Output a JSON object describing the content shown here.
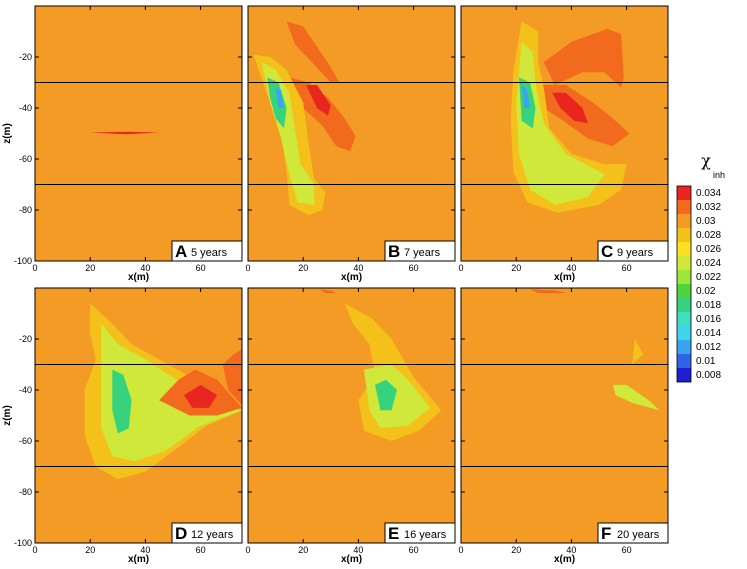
{
  "chart_data": {
    "type": "heatmap",
    "variable": "χ",
    "variable_sub": "inh",
    "xlabel": "x(m)",
    "ylabel": "z(m)",
    "xlim": [
      0,
      75
    ],
    "ylim": [
      -100,
      0
    ],
    "x_ticks": [
      0,
      20,
      40,
      60
    ],
    "y_ticks": [
      -100,
      -80,
      -60,
      -40,
      -20
    ],
    "layer_boundaries_z": [
      -30,
      -70
    ],
    "background_value": 0.029,
    "colorbar": {
      "ticks": [
        0.034,
        0.032,
        0.03,
        0.028,
        0.026,
        0.024,
        0.022,
        0.02,
        0.018,
        0.016,
        0.014,
        0.012,
        0.01,
        0.008
      ],
      "colors": [
        "#e8261f",
        "#f26a1d",
        "#f39b24",
        "#f4c01a",
        "#fbe11f",
        "#cfe839",
        "#9ee53c",
        "#4fd43e",
        "#36d27e",
        "#3fe0c0",
        "#3fd4ea",
        "#3aa4ef",
        "#2e64e6",
        "#1e1fd3"
      ]
    },
    "panels": [
      {
        "letter": "A",
        "label": "5 years",
        "features": [
          {
            "level": 0.034,
            "points": [
              [
                20,
                -49.6
              ],
              [
                33,
                -49.3
              ],
              [
                45,
                -49.6
              ],
              [
                33,
                -50.3
              ]
            ]
          }
        ]
      },
      {
        "letter": "B",
        "label": "7 years",
        "features": [
          {
            "level": 0.031,
            "points": [
              [
                14,
                -6
              ],
              [
                20,
                -8
              ],
              [
                25,
                -16
              ],
              [
                30,
                -24
              ],
              [
                33,
                -30
              ],
              [
                30,
                -30
              ],
              [
                24,
                -23
              ],
              [
                17,
                -15
              ]
            ]
          },
          {
            "level": 0.031,
            "points": [
              [
                15,
                -28
              ],
              [
                22,
                -30
              ],
              [
                29,
                -36
              ],
              [
                35,
                -44
              ],
              [
                39,
                -51
              ],
              [
                37,
                -57
              ],
              [
                32,
                -55
              ],
              [
                27,
                -47
              ],
              [
                20,
                -40
              ]
            ]
          },
          {
            "level": 0.033,
            "points": [
              [
                21,
                -31
              ],
              [
                25,
                -31
              ],
              [
                30,
                -39
              ],
              [
                29,
                -43
              ],
              [
                25,
                -40
              ]
            ]
          },
          {
            "level": 0.027,
            "points": [
              [
                2,
                -19
              ],
              [
                8,
                -20
              ],
              [
                14,
                -25
              ],
              [
                20,
                -38
              ],
              [
                22,
                -54
              ],
              [
                24,
                -68
              ],
              [
                28,
                -73
              ],
              [
                27,
                -80
              ],
              [
                22,
                -82
              ],
              [
                15,
                -78
              ],
              [
                14,
                -65
              ],
              [
                12,
                -50
              ],
              [
                8,
                -38
              ]
            ]
          },
          {
            "level": 0.024,
            "points": [
              [
                5,
                -22
              ],
              [
                10,
                -25
              ],
              [
                15,
                -34
              ],
              [
                17,
                -48
              ],
              [
                19,
                -62
              ],
              [
                24,
                -70
              ],
              [
                24,
                -78
              ],
              [
                18,
                -77
              ],
              [
                15,
                -66
              ],
              [
                12,
                -52
              ],
              [
                8,
                -38
              ]
            ]
          },
          {
            "level": 0.018,
            "points": [
              [
                7,
                -28
              ],
              [
                11,
                -30
              ],
              [
                14,
                -40
              ],
              [
                13,
                -48
              ],
              [
                10,
                -44
              ],
              [
                8,
                -36
              ]
            ]
          },
          {
            "level": 0.012,
            "points": [
              [
                10,
                -32
              ],
              [
                12,
                -33
              ],
              [
                13,
                -40
              ],
              [
                11,
                -40
              ]
            ]
          }
        ]
      },
      {
        "letter": "C",
        "label": "9 years",
        "features": [
          {
            "level": 0.031,
            "points": [
              [
                30,
                -22
              ],
              [
                40,
                -14
              ],
              [
                53,
                -9
              ],
              [
                58,
                -11
              ],
              [
                59,
                -28
              ],
              [
                58,
                -32
              ],
              [
                52,
                -26
              ],
              [
                44,
                -26
              ],
              [
                34,
                -31
              ]
            ]
          },
          {
            "level": 0.031,
            "points": [
              [
                28,
                -31
              ],
              [
                38,
                -31
              ],
              [
                48,
                -38
              ],
              [
                56,
                -45
              ],
              [
                61,
                -50
              ],
              [
                55,
                -55
              ],
              [
                46,
                -52
              ],
              [
                37,
                -45
              ],
              [
                30,
                -40
              ]
            ]
          },
          {
            "level": 0.033,
            "points": [
              [
                33,
                -34
              ],
              [
                38,
                -34
              ],
              [
                44,
                -40
              ],
              [
                46,
                -46
              ],
              [
                41,
                -45
              ],
              [
                36,
                -40
              ]
            ]
          },
          {
            "level": 0.027,
            "points": [
              [
                22,
                -6
              ],
              [
                28,
                -10
              ],
              [
                28,
                -22
              ],
              [
                30,
                -32
              ],
              [
                32,
                -48
              ],
              [
                40,
                -58
              ],
              [
                52,
                -62
              ],
              [
                60,
                -62
              ],
              [
                58,
                -72
              ],
              [
                50,
                -78
              ],
              [
                35,
                -81
              ],
              [
                24,
                -77
              ],
              [
                19,
                -65
              ],
              [
                18,
                -45
              ],
              [
                19,
                -25
              ]
            ]
          },
          {
            "level": 0.024,
            "points": [
              [
                22,
                -14
              ],
              [
                26,
                -18
              ],
              [
                27,
                -30
              ],
              [
                30,
                -46
              ],
              [
                38,
                -58
              ],
              [
                52,
                -66
              ],
              [
                46,
                -75
              ],
              [
                34,
                -78
              ],
              [
                25,
                -72
              ],
              [
                21,
                -58
              ],
              [
                20,
                -38
              ]
            ]
          },
          {
            "level": 0.018,
            "points": [
              [
                21,
                -28
              ],
              [
                25,
                -30
              ],
              [
                27,
                -40
              ],
              [
                26,
                -48
              ],
              [
                22,
                -45
              ]
            ]
          },
          {
            "level": 0.012,
            "points": [
              [
                22,
                -31
              ],
              [
                24,
                -33
              ],
              [
                25,
                -40
              ],
              [
                23,
                -40
              ]
            ]
          }
        ]
      },
      {
        "letter": "D",
        "label": "12 years",
        "features": [
          {
            "level": 0.027,
            "points": [
              [
                20,
                -6
              ],
              [
                28,
                -14
              ],
              [
                35,
                -22
              ],
              [
                45,
                -28
              ],
              [
                55,
                -34
              ],
              [
                70,
                -42
              ],
              [
                75,
                -48
              ],
              [
                62,
                -54
              ],
              [
                50,
                -64
              ],
              [
                40,
                -72
              ],
              [
                30,
                -75
              ],
              [
                22,
                -70
              ],
              [
                18,
                -58
              ],
              [
                18,
                -40
              ],
              [
                22,
                -28
              ],
              [
                20,
                -18
              ]
            ]
          },
          {
            "level": 0.024,
            "points": [
              [
                24,
                -14
              ],
              [
                30,
                -22
              ],
              [
                40,
                -28
              ],
              [
                50,
                -35
              ],
              [
                62,
                -44
              ],
              [
                75,
                -48
              ],
              [
                60,
                -54
              ],
              [
                47,
                -64
              ],
              [
                36,
                -68
              ],
              [
                28,
                -66
              ],
              [
                24,
                -55
              ],
              [
                24,
                -38
              ]
            ]
          },
          {
            "level": 0.018,
            "points": [
              [
                28,
                -32
              ],
              [
                32,
                -34
              ],
              [
                35,
                -44
              ],
              [
                34,
                -55
              ],
              [
                30,
                -57
              ],
              [
                28,
                -48
              ]
            ]
          },
          {
            "level": 0.031,
            "points": [
              [
                68,
                -30
              ],
              [
                72,
                -26
              ],
              [
                75,
                -24
              ],
              [
                75,
                -46
              ],
              [
                70,
                -40
              ]
            ]
          },
          {
            "level": 0.031,
            "points": [
              [
                45,
                -44
              ],
              [
                52,
                -36
              ],
              [
                58,
                -32
              ],
              [
                66,
                -36
              ],
              [
                75,
                -47
              ],
              [
                66,
                -50
              ],
              [
                56,
                -50
              ]
            ]
          },
          {
            "level": 0.033,
            "points": [
              [
                54,
                -42
              ],
              [
                60,
                -38
              ],
              [
                66,
                -42
              ],
              [
                63,
                -47
              ],
              [
                57,
                -47
              ]
            ]
          }
        ]
      },
      {
        "letter": "E",
        "label": "16 years",
        "features": [
          {
            "level": 0.031,
            "points": [
              [
                26,
                -0.5
              ],
              [
                30,
                -1
              ],
              [
                32,
                -2
              ],
              [
                28,
                -2
              ]
            ]
          },
          {
            "level": 0.027,
            "points": [
              [
                35,
                -6
              ],
              [
                45,
                -12
              ],
              [
                52,
                -20
              ],
              [
                60,
                -35
              ],
              [
                70,
                -48
              ],
              [
                62,
                -56
              ],
              [
                52,
                -60
              ],
              [
                42,
                -56
              ],
              [
                40,
                -44
              ],
              [
                46,
                -34
              ],
              [
                44,
                -22
              ],
              [
                38,
                -14
              ]
            ]
          },
          {
            "level": 0.024,
            "points": [
              [
                42,
                -32
              ],
              [
                52,
                -30
              ],
              [
                58,
                -36
              ],
              [
                66,
                -47
              ],
              [
                58,
                -54
              ],
              [
                48,
                -55
              ],
              [
                44,
                -48
              ]
            ]
          },
          {
            "level": 0.018,
            "points": [
              [
                46,
                -38
              ],
              [
                50,
                -36
              ],
              [
                54,
                -40
              ],
              [
                52,
                -48
              ],
              [
                48,
                -48
              ]
            ]
          }
        ]
      },
      {
        "letter": "F",
        "label": "20 years",
        "features": [
          {
            "level": 0.031,
            "points": [
              [
                25,
                -0.5
              ],
              [
                35,
                -1
              ],
              [
                38,
                -2
              ],
              [
                28,
                -2
              ]
            ]
          },
          {
            "level": 0.027,
            "points": [
              [
                63,
                -20
              ],
              [
                66,
                -26
              ],
              [
                62,
                -30
              ]
            ]
          },
          {
            "level": 0.024,
            "points": [
              [
                55,
                -38
              ],
              [
                60,
                -38
              ],
              [
                68,
                -44
              ],
              [
                72,
                -48
              ],
              [
                62,
                -45
              ],
              [
                56,
                -42
              ]
            ]
          }
        ]
      }
    ]
  }
}
